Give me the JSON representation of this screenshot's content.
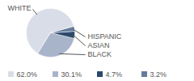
{
  "chart_data": {
    "type": "pie",
    "categories": [
      "WHITE",
      "BLACK",
      "ASIAN",
      "HISPANIC"
    ],
    "values": [
      62.0,
      30.1,
      4.7,
      3.2
    ],
    "value_labels": [
      "62.0%",
      "30.1%",
      "4.7%",
      "3.2%"
    ],
    "colors": [
      "#d9dde7",
      "#a8b4ca",
      "#2d4a6c",
      "#647b9c"
    ],
    "legend": "bottom"
  }
}
